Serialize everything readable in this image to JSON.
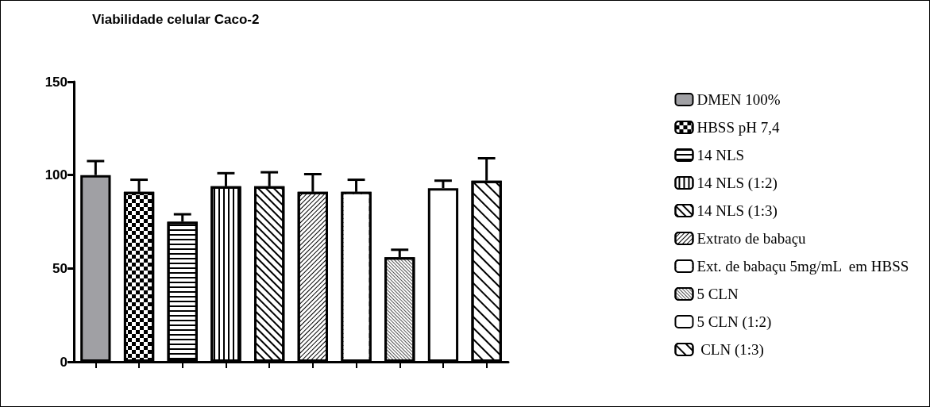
{
  "chart_data": {
    "type": "bar",
    "title": "Viabilidade celular Caco-2",
    "categories": [
      null,
      null,
      null,
      null,
      null,
      null,
      null,
      null,
      null,
      null
    ],
    "series": [
      {
        "name": "DMEN 100%",
        "color": "#a0a0a4",
        "values": [
          100,
          null,
          null,
          null,
          null,
          null,
          null,
          null,
          null,
          null
        ],
        "errors": [
          7.5,
          null,
          null,
          null,
          null,
          null,
          null,
          null,
          null,
          null
        ]
      },
      {
        "name": "HBSS pH 7,4",
        "color": "#ffffff",
        "values": [
          null,
          91,
          null,
          null,
          null,
          null,
          null,
          null,
          null,
          null
        ],
        "errors": [
          null,
          6.5,
          null,
          null,
          null,
          null,
          null,
          null,
          null,
          null
        ]
      },
      {
        "name": "14 NLS",
        "color": "#ffffff",
        "values": [
          null,
          null,
          75,
          null,
          null,
          null,
          null,
          null,
          null,
          null
        ],
        "errors": [
          null,
          null,
          4,
          null,
          null,
          null,
          null,
          null,
          null,
          null
        ]
      },
      {
        "name": "14 NLS (1:2)",
        "color": "#ffffff",
        "values": [
          null,
          null,
          null,
          94,
          null,
          null,
          null,
          null,
          null,
          null
        ],
        "errors": [
          null,
          null,
          null,
          7,
          null,
          null,
          null,
          null,
          null,
          null
        ]
      },
      {
        "name": "14 NLS (1:3)",
        "color": "#ffffff",
        "values": [
          null,
          null,
          null,
          null,
          94,
          null,
          null,
          null,
          null,
          null
        ],
        "errors": [
          null,
          null,
          null,
          null,
          7.5,
          null,
          null,
          null,
          null,
          null
        ]
      },
      {
        "name": "Extrato de babaçu",
        "color": "#ffffff",
        "values": [
          null,
          null,
          null,
          null,
          null,
          91,
          null,
          null,
          null,
          null
        ],
        "errors": [
          null,
          null,
          null,
          null,
          null,
          9.5,
          null,
          null,
          null,
          null
        ]
      },
      {
        "name": "Ext. de babaçu 5mg/mL  em HBSS",
        "color": "#ffffff",
        "values": [
          null,
          null,
          null,
          null,
          null,
          null,
          91,
          null,
          null,
          null
        ],
        "errors": [
          null,
          null,
          null,
          null,
          null,
          null,
          6.5,
          null,
          null,
          null
        ]
      },
      {
        "name": "5 CLN",
        "color": "#ffffff",
        "values": [
          null,
          null,
          null,
          null,
          null,
          null,
          null,
          56,
          null,
          null
        ],
        "errors": [
          null,
          null,
          null,
          null,
          null,
          null,
          null,
          4,
          null,
          null
        ]
      },
      {
        "name": "5 CLN (1:2)",
        "color": "#ffffff",
        "values": [
          null,
          null,
          null,
          null,
          null,
          null,
          null,
          null,
          93,
          null
        ],
        "errors": [
          null,
          null,
          null,
          null,
          null,
          null,
          null,
          null,
          4,
          null
        ]
      },
      {
        "name": " CLN (1:3)",
        "color": "#ffffff",
        "values": [
          null,
          null,
          null,
          null,
          null,
          null,
          null,
          null,
          null,
          97
        ],
        "errors": [
          null,
          null,
          null,
          null,
          null,
          null,
          null,
          null,
          null,
          12
        ]
      }
    ],
    "ylim": [
      0,
      150
    ],
    "yticks": [
      0,
      50,
      100,
      150
    ],
    "grid": false,
    "legend": "right"
  }
}
